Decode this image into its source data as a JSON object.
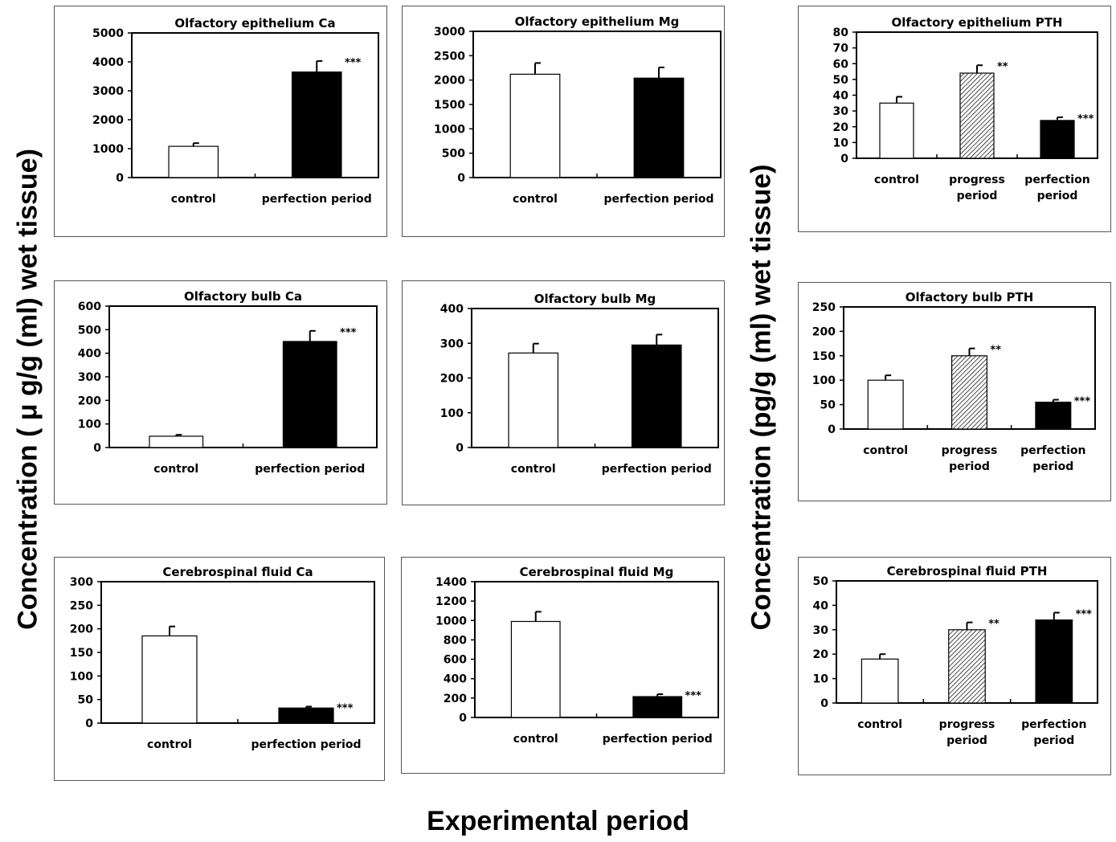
{
  "y_label_left": "Concentration ( μ g/g (ml) wet tissue)",
  "y_label_right": "Concentration (pg/g (ml) wet tissue)",
  "x_label": "Experimental period",
  "chart_data": [
    {
      "type": "bar",
      "title": "Olfactory epithelium Ca",
      "ylim": [
        0,
        5000
      ],
      "ticks": [
        0,
        1000,
        2000,
        3000,
        4000,
        5000
      ],
      "categories": [
        [
          "control"
        ],
        [
          "perfection period"
        ]
      ],
      "values": [
        1080,
        3650
      ],
      "errors": [
        110,
        380
      ],
      "styles": [
        "open",
        "solid"
      ],
      "significance": [
        "",
        "***"
      ]
    },
    {
      "type": "bar",
      "title": "Olfactory epithelium Mg",
      "ylim": [
        0,
        3000
      ],
      "ticks": [
        0,
        500,
        1000,
        1500,
        2000,
        2500,
        3000
      ],
      "categories": [
        [
          "control"
        ],
        [
          "perfection period"
        ]
      ],
      "values": [
        2120,
        2040
      ],
      "errors": [
        230,
        220
      ],
      "styles": [
        "open",
        "solid"
      ],
      "significance": [
        "",
        ""
      ]
    },
    {
      "type": "bar",
      "title": "Olfactory epithelium PTH",
      "ylim": [
        0,
        80
      ],
      "ticks": [
        0,
        10,
        20,
        30,
        40,
        50,
        60,
        70,
        80
      ],
      "categories": [
        [
          "control"
        ],
        [
          "progress",
          "period"
        ],
        [
          "perfection",
          "period"
        ]
      ],
      "values": [
        35,
        54,
        24
      ],
      "errors": [
        4,
        5,
        2
      ],
      "styles": [
        "open",
        "hatched",
        "solid"
      ],
      "significance": [
        "",
        "**",
        "***"
      ]
    },
    {
      "type": "bar",
      "title": "Olfactory bulb Ca",
      "ylim": [
        0,
        600
      ],
      "ticks": [
        0,
        100,
        200,
        300,
        400,
        500,
        600
      ],
      "categories": [
        [
          "control"
        ],
        [
          "perfection period"
        ]
      ],
      "values": [
        48,
        450
      ],
      "errors": [
        6,
        45
      ],
      "styles": [
        "open",
        "solid"
      ],
      "significance": [
        "",
        "***"
      ]
    },
    {
      "type": "bar",
      "title": "Olfactory bulb Mg",
      "ylim": [
        0,
        400
      ],
      "ticks": [
        0,
        100,
        200,
        300,
        400
      ],
      "categories": [
        [
          "control"
        ],
        [
          "perfection period"
        ]
      ],
      "values": [
        272,
        295
      ],
      "errors": [
        27,
        30
      ],
      "styles": [
        "open",
        "solid"
      ],
      "significance": [
        "",
        ""
      ]
    },
    {
      "type": "bar",
      "title": "Olfactory bulb PTH",
      "ylim": [
        0,
        250
      ],
      "ticks": [
        0,
        50,
        100,
        150,
        200,
        250
      ],
      "categories": [
        [
          "control"
        ],
        [
          "progress",
          "period"
        ],
        [
          "perfection",
          "period"
        ]
      ],
      "values": [
        100,
        150,
        55
      ],
      "errors": [
        10,
        15,
        5
      ],
      "styles": [
        "open",
        "hatched",
        "solid"
      ],
      "significance": [
        "",
        "**",
        "***"
      ]
    },
    {
      "type": "bar",
      "title": "Cerebrospinal fluid Ca",
      "ylim": [
        0,
        300
      ],
      "ticks": [
        0,
        50,
        100,
        150,
        200,
        250,
        300
      ],
      "categories": [
        [
          "control"
        ],
        [
          "perfection period"
        ]
      ],
      "values": [
        185,
        32
      ],
      "errors": [
        20,
        3
      ],
      "styles": [
        "open",
        "solid"
      ],
      "significance": [
        "",
        "***"
      ]
    },
    {
      "type": "bar",
      "title": "Cerebrospinal fluid Mg",
      "ylim": [
        0,
        1400
      ],
      "ticks": [
        0,
        200,
        400,
        600,
        800,
        1000,
        1200,
        1400
      ],
      "categories": [
        [
          "control"
        ],
        [
          "perfection period"
        ]
      ],
      "values": [
        990,
        215
      ],
      "errors": [
        100,
        25
      ],
      "styles": [
        "open",
        "solid"
      ],
      "significance": [
        "",
        "***"
      ]
    },
    {
      "type": "bar",
      "title": "Cerebrospinal fluid PTH",
      "ylim": [
        0,
        50
      ],
      "ticks": [
        0,
        10,
        20,
        30,
        40,
        50
      ],
      "categories": [
        [
          "control"
        ],
        [
          "progress",
          "period"
        ],
        [
          "perfection",
          "period"
        ]
      ],
      "values": [
        18,
        30,
        34
      ],
      "errors": [
        2,
        3,
        3
      ],
      "styles": [
        "open",
        "hatched",
        "solid"
      ],
      "significance": [
        "",
        "**",
        "***"
      ]
    }
  ]
}
